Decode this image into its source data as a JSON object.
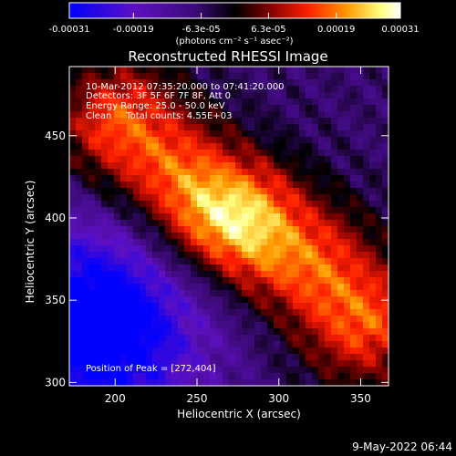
{
  "chart_data": {
    "type": "heatmap",
    "title": "Reconstructed RHESSI Image",
    "xlabel": "Heliocentric X (arcsec)",
    "ylabel": "Heliocentric Y (arcsec)",
    "xlim": [
      172,
      367
    ],
    "ylim": [
      298,
      492
    ],
    "x_ticks": [
      200,
      250,
      300,
      350
    ],
    "y_ticks": [
      300,
      350,
      400,
      450
    ],
    "colorbar": {
      "range": [
        -0.00031,
        0.00031
      ],
      "ticks": [
        -0.00031,
        -0.00019,
        -6.3e-05,
        6.3e-05,
        0.00019,
        0.00031
      ],
      "tick_labels": [
        "-0.00031",
        "-0.00019",
        "-6.3e-05",
        "6.3e-05",
        "0.00019",
        "0.00031"
      ],
      "units": "(photons cm⁻² s⁻¹ asec⁻²)",
      "colormap": [
        "#0000ff",
        "#5e10c0",
        "#3c0a78",
        "#000000",
        "#7a0000",
        "#ff1e00",
        "#ff9a00",
        "#ffff7f",
        "#ffffff"
      ]
    },
    "annotations": [
      "10-Mar-2012 07:35:20.000 to 07:41:20.000",
      "Detectors: 3F 5F 6F 7F 8F, Att 0",
      "Energy Range: 25.0 - 50.0 keV",
      "Clean     Total counts: 4.55E+03"
    ],
    "peak_label": "Position of Peak = [272,404]",
    "peak": [
      272,
      404
    ],
    "emission_ridge": [
      [
        205,
        455
      ],
      [
        230,
        430
      ],
      [
        255,
        405
      ],
      [
        285,
        390
      ],
      [
        320,
        370
      ],
      [
        350,
        340
      ]
    ],
    "emission_extent_arcsec": 38,
    "low_region_center": [
      190,
      335
    ],
    "low_region_extent_arcsec": 55
  },
  "footer": {
    "timestamp": "9-May-2022 06:44"
  }
}
